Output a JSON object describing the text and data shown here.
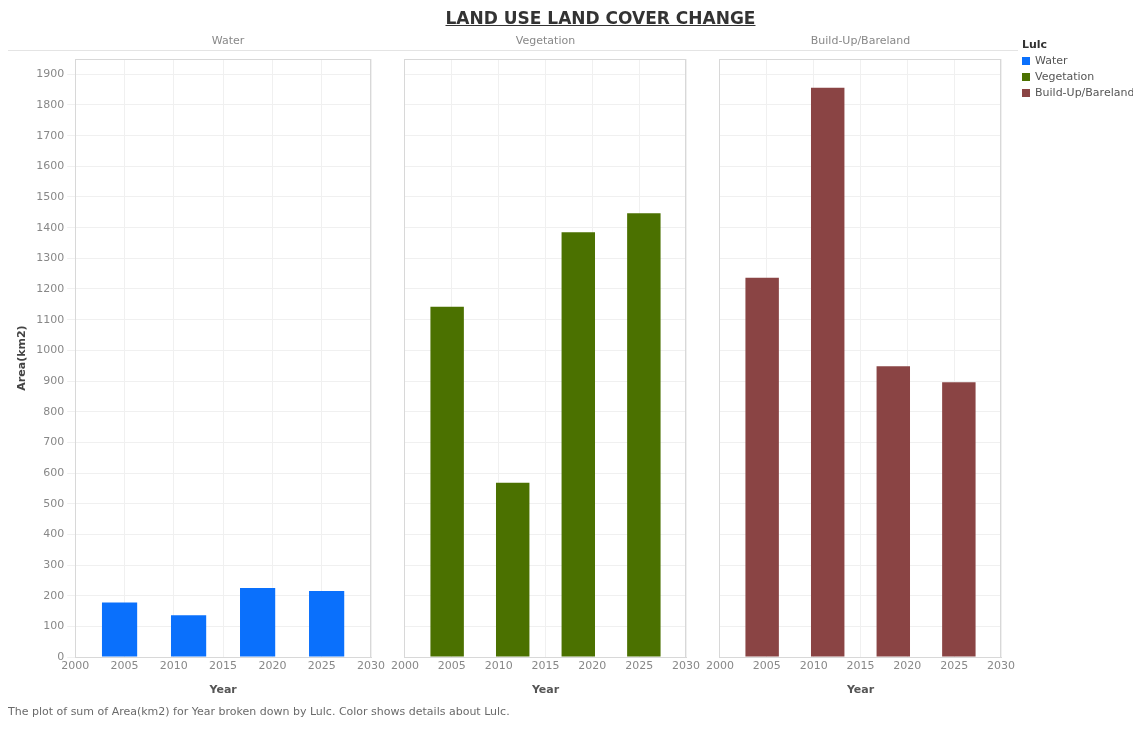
{
  "chart_data": [
    {
      "type": "bar",
      "subtitle": "Water",
      "xlabel": "Year",
      "ylabel": "Area(km2)",
      "x": [
        2004.5,
        2011.5,
        2018.5,
        2025.5
      ],
      "series": [
        {
          "name": "Water",
          "color": "#0a70fc",
          "values": [
            178,
            136,
            225,
            215
          ]
        }
      ],
      "xlim": [
        2000,
        2030
      ],
      "xticks": [
        2000,
        2005,
        2010,
        2015,
        2020,
        2025,
        2030
      ],
      "ylim": [
        0,
        1950
      ],
      "yticks": [
        0,
        100,
        200,
        300,
        400,
        500,
        600,
        700,
        800,
        900,
        1000,
        1100,
        1200,
        1300,
        1400,
        1500,
        1600,
        1700,
        1800,
        1900
      ],
      "grid": true,
      "annotations": [
        "The plot of sum of Area(km2) for Year broken down by Lulc.  Color shows details about Lulc."
      ]
    },
    {
      "type": "bar",
      "title": "LAND USE LAND COVER CHANGE",
      "subtitle": "Vegetation",
      "xlabel": "Year",
      "x": [
        2004.5,
        2011.5,
        2018.5,
        2025.5
      ],
      "series": [
        {
          "name": "Vegetation",
          "color": "#4b7100",
          "values": [
            1142,
            568,
            1385,
            1447
          ]
        }
      ],
      "xlim": [
        2000,
        2030
      ],
      "xticks": [
        2000,
        2005,
        2010,
        2015,
        2020,
        2025,
        2030
      ],
      "ylim": [
        0,
        1950
      ],
      "yticks": [
        0,
        100,
        200,
        300,
        400,
        500,
        600,
        700,
        800,
        900,
        1000,
        1100,
        1200,
        1300,
        1400,
        1500,
        1600,
        1700,
        1800,
        1900
      ],
      "grid": true,
      "tick_labels": "x"
    },
    {
      "type": "bar",
      "subtitle": "Build-Up/Bareland",
      "xlabel": "Year",
      "x": [
        2004.5,
        2011.5,
        2018.5,
        2025.5
      ],
      "series": [
        {
          "name": "Build-Up/Bareland",
          "color": "#8a4444",
          "values": [
            1237,
            1856,
            948,
            896
          ]
        }
      ],
      "xlim": [
        2000,
        2030
      ],
      "xticks": [
        2000,
        2005,
        2010,
        2015,
        2020,
        2025,
        2030
      ],
      "ylim": [
        0,
        1950
      ],
      "yticks": [
        0,
        100,
        200,
        300,
        400,
        500,
        600,
        700,
        800,
        900,
        1000,
        1100,
        1200,
        1300,
        1400,
        1500,
        1600,
        1700,
        1800,
        1900
      ],
      "grid": true,
      "tick_labels": "x",
      "legend": "right",
      "legend_title": "Lulc"
    }
  ]
}
